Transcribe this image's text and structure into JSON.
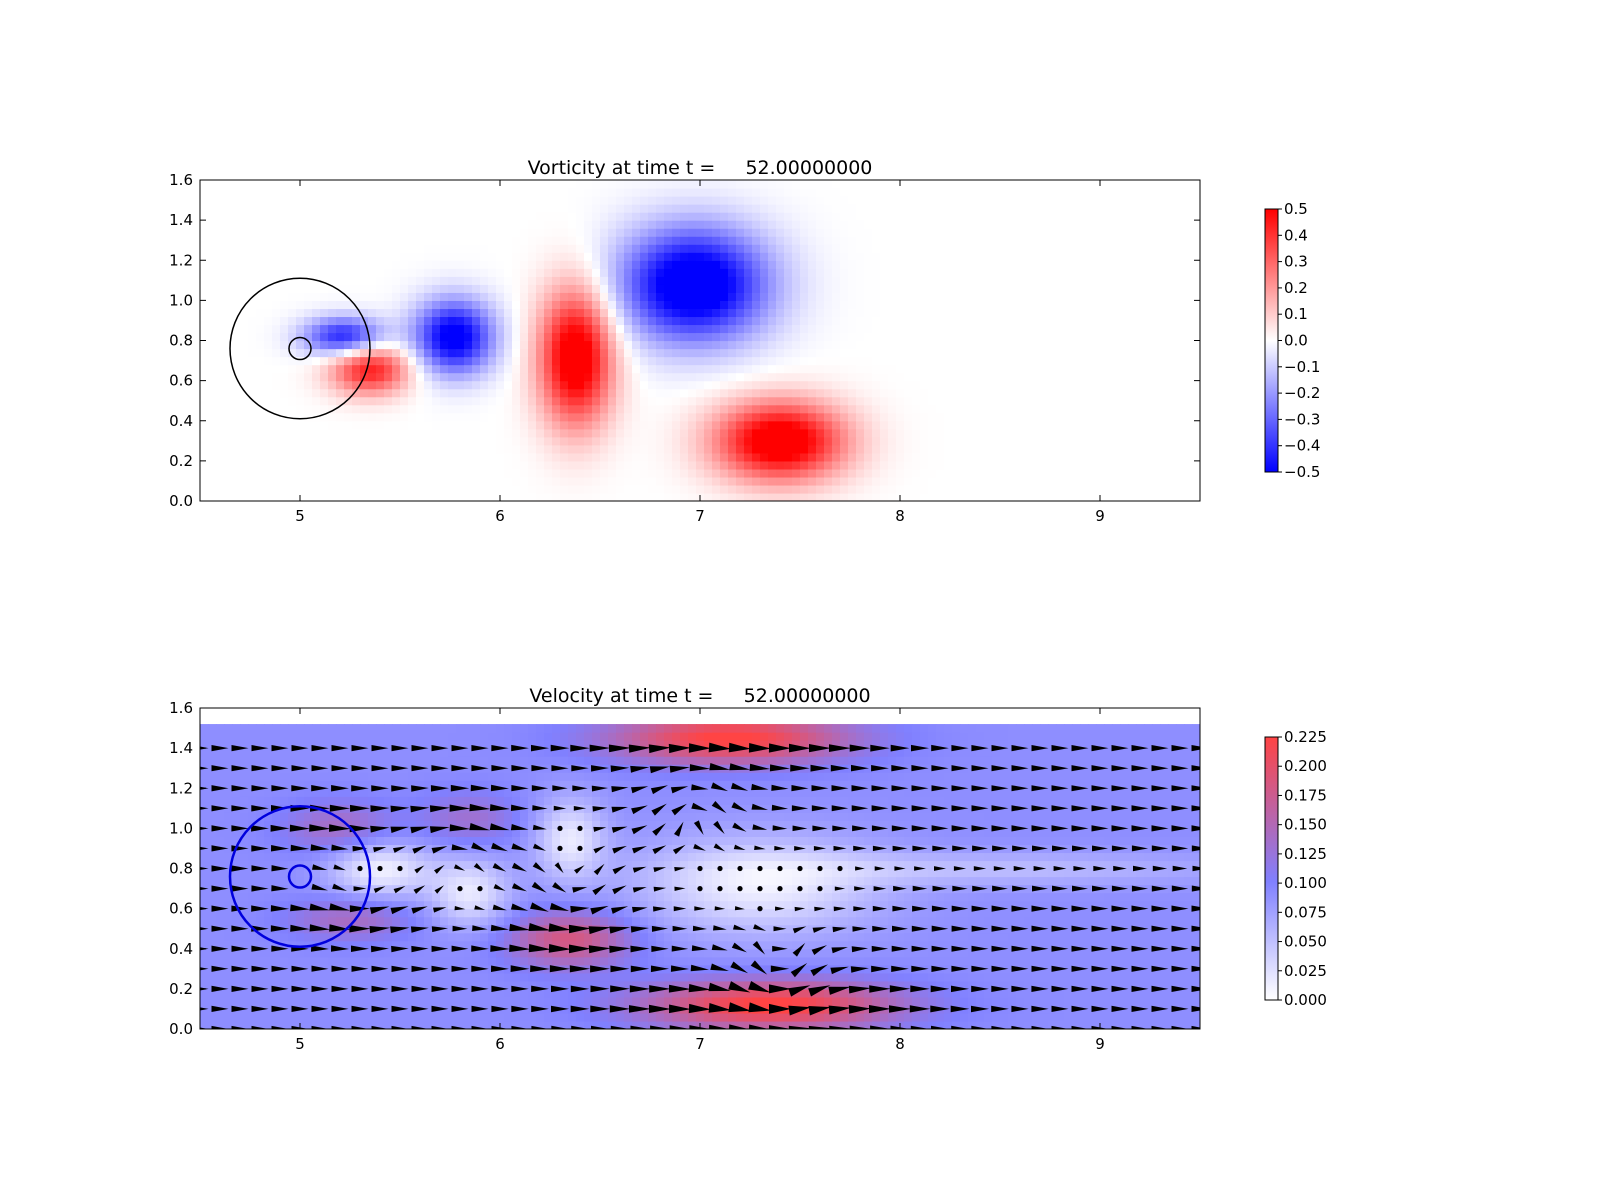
{
  "chart_data": [
    {
      "type": "heatmap",
      "title": "Vorticity at time t =     52.00000000",
      "xlim": [
        4.5,
        9.5
      ],
      "ylim": [
        0.0,
        1.6
      ],
      "xticks": [
        "5",
        "6",
        "7",
        "8",
        "9"
      ],
      "yticks": [
        "0.0",
        "0.2",
        "0.4",
        "0.6",
        "0.8",
        "1.0",
        "1.2",
        "1.4",
        "1.6"
      ],
      "colormap": {
        "low": "#0000ff",
        "mid": "#ffffff",
        "high": "#ff0000"
      },
      "colorbar_range": [
        -0.5,
        0.5
      ],
      "colorbar_ticks": [
        "0.5",
        "0.4",
        "0.3",
        "0.2",
        "0.1",
        "0.0",
        "−0.1",
        "−0.2",
        "−0.3",
        "−0.4",
        "−0.5"
      ],
      "circles": [
        {
          "cx": 5.0,
          "cy": 0.76,
          "r": 0.35,
          "color": "#000000"
        },
        {
          "cx": 5.0,
          "cy": 0.76,
          "r": 0.055,
          "color": "#000000"
        }
      ],
      "features": [
        {
          "x": 5.35,
          "y": 0.66,
          "sx": 0.14,
          "sy": 0.09,
          "value": 0.45
        },
        {
          "x": 5.22,
          "y": 0.82,
          "sx": 0.14,
          "sy": 0.07,
          "value": -0.45
        },
        {
          "x": 5.77,
          "y": 0.82,
          "sx": 0.14,
          "sy": 0.13,
          "value": -0.55
        },
        {
          "x": 6.38,
          "y": 0.72,
          "sx": 0.13,
          "sy": 0.24,
          "value": 0.6
        },
        {
          "x": 6.97,
          "y": 1.08,
          "sx": 0.26,
          "sy": 0.2,
          "value": -0.62
        },
        {
          "x": 7.4,
          "y": 0.3,
          "sx": 0.23,
          "sy": 0.14,
          "value": 0.6
        }
      ]
    },
    {
      "type": "heatmap",
      "title": "Velocity at time t =     52.00000000",
      "xlim": [
        4.5,
        9.5
      ],
      "ylim": [
        0.0,
        1.6
      ],
      "xticks": [
        "5",
        "6",
        "7",
        "8",
        "9"
      ],
      "yticks": [
        "0.0",
        "0.2",
        "0.4",
        "0.6",
        "0.8",
        "1.0",
        "1.2",
        "1.4",
        "1.6"
      ],
      "colorbar_range": [
        0.0,
        0.225
      ],
      "colorbar_ticks": [
        "0.225",
        "0.200",
        "0.175",
        "0.150",
        "0.125",
        "0.100",
        "0.075",
        "0.050",
        "0.025",
        "0.000"
      ],
      "colormap": {
        "low": "#ffffff",
        "mid": "#8080ff",
        "high": "#ff4444"
      },
      "field_top": 1.52,
      "background_speed": 0.1,
      "circles": [
        {
          "cx": 5.0,
          "cy": 0.76,
          "r": 0.35,
          "color": "#0000dd"
        },
        {
          "cx": 5.0,
          "cy": 0.76,
          "r": 0.055,
          "color": "#0000dd"
        }
      ],
      "features": [
        {
          "x": 7.15,
          "y": 1.45,
          "sx": 0.42,
          "sy": 0.09,
          "value": 0.13
        },
        {
          "x": 7.35,
          "y": 0.12,
          "sx": 0.45,
          "sy": 0.09,
          "value": 0.13
        },
        {
          "x": 6.35,
          "y": 0.45,
          "sx": 0.22,
          "sy": 0.1,
          "value": 0.09
        },
        {
          "x": 5.2,
          "y": 1.0,
          "sx": 0.2,
          "sy": 0.1,
          "value": 0.05
        },
        {
          "x": 5.25,
          "y": 0.55,
          "sx": 0.22,
          "sy": 0.08,
          "value": 0.05
        },
        {
          "x": 5.85,
          "y": 1.05,
          "sx": 0.18,
          "sy": 0.1,
          "value": 0.04
        },
        {
          "x": 5.4,
          "y": 0.8,
          "sx": 0.18,
          "sy": 0.1,
          "value": -0.09
        },
        {
          "x": 5.85,
          "y": 0.68,
          "sx": 0.14,
          "sy": 0.12,
          "value": -0.08
        },
        {
          "x": 6.35,
          "y": 0.95,
          "sx": 0.12,
          "sy": 0.14,
          "value": -0.08
        },
        {
          "x": 7.3,
          "y": 0.72,
          "sx": 0.42,
          "sy": 0.17,
          "value": -0.085
        },
        {
          "x": 8.5,
          "y": 0.8,
          "sx": 0.8,
          "sy": 0.06,
          "value": -0.04
        }
      ]
    }
  ]
}
